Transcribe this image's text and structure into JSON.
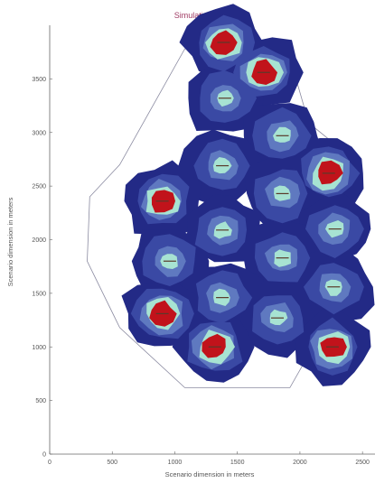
{
  "chart_data": {
    "type": "heatmap",
    "title": "Simulation scenario",
    "xlabel": "Scenario dimension in meters",
    "ylabel": "Scenario dimension in meters",
    "xlim": [
      0,
      2600
    ],
    "ylim": [
      0,
      4000
    ],
    "x_ticks": [
      "0",
      "500",
      "1000",
      "1500",
      "2000",
      "2500"
    ],
    "y_ticks": [
      "0",
      "500",
      "1000",
      "1500",
      "2000",
      "2500",
      "3000",
      "3500"
    ],
    "x_tick_values": [
      0,
      500,
      1000,
      1500,
      2000,
      2500
    ],
    "y_tick_values": [
      0,
      500,
      1000,
      1500,
      2000,
      2500,
      3000,
      3500
    ],
    "boundary": [
      [
        1080,
        3780
      ],
      [
        1900,
        3780
      ],
      [
        2070,
        3090
      ],
      [
        2480,
        2700
      ],
      [
        2320,
        1440
      ],
      [
        1920,
        620
      ],
      [
        1080,
        620
      ],
      [
        560,
        1180
      ],
      [
        300,
        1800
      ],
      [
        320,
        2400
      ],
      [
        560,
        2700
      ]
    ],
    "cells": [
      {
        "x": 1390,
        "y": 3840,
        "core": true
      },
      {
        "x": 1710,
        "y": 3560,
        "core": true
      },
      {
        "x": 1400,
        "y": 3320,
        "core": false
      },
      {
        "x": 1860,
        "y": 2970,
        "core": false
      },
      {
        "x": 2230,
        "y": 2620,
        "core": true
      },
      {
        "x": 1380,
        "y": 2690,
        "core": false
      },
      {
        "x": 900,
        "y": 2360,
        "core": true
      },
      {
        "x": 1860,
        "y": 2430,
        "core": false
      },
      {
        "x": 2280,
        "y": 2100,
        "core": false
      },
      {
        "x": 1380,
        "y": 2090,
        "core": false
      },
      {
        "x": 960,
        "y": 1800,
        "core": false
      },
      {
        "x": 1860,
        "y": 1830,
        "core": false
      },
      {
        "x": 2270,
        "y": 1560,
        "core": false
      },
      {
        "x": 1380,
        "y": 1460,
        "core": false
      },
      {
        "x": 900,
        "y": 1310,
        "core": true
      },
      {
        "x": 1820,
        "y": 1270,
        "core": false
      },
      {
        "x": 1320,
        "y": 1000,
        "core": true
      },
      {
        "x": 2260,
        "y": 1000,
        "core": true
      }
    ],
    "colors": {
      "outer": "#232a86",
      "ring1": "#3a49a4",
      "ring2": "#5f79c0",
      "ring3": "#a7e3d2",
      "core": "#c1131b",
      "boundary": "#8a8aa0",
      "axis": "#666666"
    },
    "grid": false
  }
}
